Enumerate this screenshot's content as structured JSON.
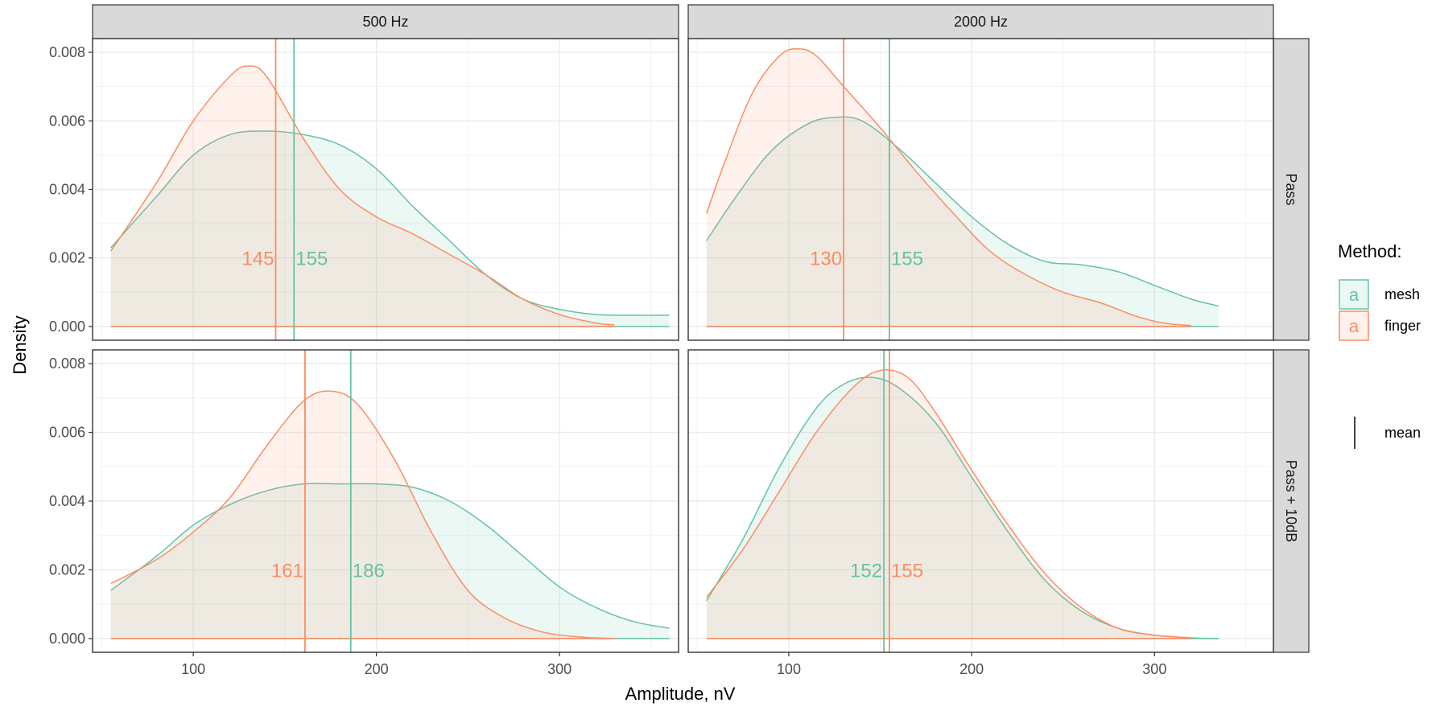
{
  "chart_data": {
    "type": "area",
    "x_label": "Amplitude, nV",
    "y_label": "Density",
    "x_range": [
      45,
      365
    ],
    "y_range": [
      -0.0004,
      0.0084
    ],
    "x_ticks": [
      100,
      200,
      300
    ],
    "x_tick_labels": [
      "100",
      "200",
      "300"
    ],
    "y_ticks": [
      0.0,
      0.002,
      0.004,
      0.006,
      0.008
    ],
    "y_tick_labels": [
      "0.000",
      "0.002",
      "0.004",
      "0.006",
      "0.008"
    ],
    "grid": true,
    "col_strips": [
      "500 Hz",
      "2000 Hz"
    ],
    "row_strips": [
      "Pass",
      "Pass + 10dB"
    ],
    "legend": {
      "title": "Method:",
      "position": "right",
      "key_glyph": "a",
      "items": [
        {
          "label": "mesh",
          "color": "#66c2a5"
        },
        {
          "label": "finger",
          "color": "#fc8d62"
        }
      ],
      "mean_label": "mean"
    },
    "series_colors": {
      "mesh": "#66c2a5",
      "finger": "#fc8d62"
    },
    "panels": [
      {
        "col": "500 Hz",
        "row": "Pass",
        "series": [
          {
            "name": "mesh",
            "x_min": 55,
            "x_max": 360,
            "x": [
              55,
              80,
              100,
              120,
              140,
              160,
              180,
              200,
              220,
              240,
              260,
              280,
              300,
              320,
              340,
              360
            ],
            "y": [
              0.0023,
              0.0038,
              0.005,
              0.0056,
              0.0057,
              0.0056,
              0.0053,
              0.0046,
              0.0035,
              0.0025,
              0.0015,
              0.0008,
              0.0005,
              0.00035,
              0.00033,
              0.00033
            ],
            "mean": 155,
            "mean_label": "155"
          },
          {
            "name": "finger",
            "x_min": 55,
            "x_max": 330,
            "x": [
              55,
              80,
              100,
              120,
              130,
              140,
              160,
              180,
              200,
              220,
              240,
              260,
              280,
              300,
              320,
              330
            ],
            "y": [
              0.0022,
              0.0042,
              0.006,
              0.0073,
              0.0076,
              0.0073,
              0.0055,
              0.004,
              0.0032,
              0.0027,
              0.0021,
              0.0015,
              0.0008,
              0.00035,
              0.0001,
              5e-05
            ],
            "mean": 145,
            "mean_label": "145"
          }
        ]
      },
      {
        "col": "2000 Hz",
        "row": "Pass",
        "series": [
          {
            "name": "mesh",
            "x_min": 55,
            "x_max": 335,
            "x": [
              55,
              70,
              90,
              110,
              125,
              140,
              160,
              180,
              200,
              220,
              240,
              260,
              280,
              300,
              320,
              335
            ],
            "y": [
              0.0025,
              0.0037,
              0.0051,
              0.0059,
              0.0061,
              0.006,
              0.0052,
              0.0042,
              0.0032,
              0.0024,
              0.0019,
              0.0018,
              0.0016,
              0.0012,
              0.0008,
              0.0006
            ],
            "mean": 155,
            "mean_label": "155"
          },
          {
            "name": "finger",
            "x_min": 55,
            "x_max": 320,
            "x": [
              55,
              65,
              80,
              95,
              105,
              115,
              130,
              150,
              170,
              190,
              210,
              230,
              250,
              270,
              290,
              305,
              320
            ],
            "y": [
              0.0033,
              0.0048,
              0.0068,
              0.0079,
              0.0081,
              0.0079,
              0.007,
              0.0058,
              0.0045,
              0.0033,
              0.0022,
              0.0015,
              0.001,
              0.0007,
              0.0003,
              0.0001,
              3e-05
            ],
            "mean": 130,
            "mean_label": "130"
          }
        ]
      },
      {
        "col": "500 Hz",
        "row": "Pass + 10dB",
        "series": [
          {
            "name": "mesh",
            "x_min": 55,
            "x_max": 360,
            "x": [
              55,
              80,
              100,
              120,
              140,
              160,
              180,
              200,
              220,
              240,
              260,
              280,
              300,
              320,
              340,
              360
            ],
            "y": [
              0.0014,
              0.0024,
              0.0033,
              0.0039,
              0.0043,
              0.0045,
              0.0045,
              0.0045,
              0.0044,
              0.004,
              0.0033,
              0.0024,
              0.0015,
              0.0009,
              0.0005,
              0.0003
            ],
            "mean": 186,
            "mean_label": "186"
          },
          {
            "name": "finger",
            "x_min": 55,
            "x_max": 330,
            "x": [
              55,
              80,
              100,
              120,
              140,
              160,
              175,
              190,
              210,
              230,
              250,
              270,
              290,
              310,
              330
            ],
            "y": [
              0.0016,
              0.0023,
              0.0031,
              0.0041,
              0.0056,
              0.0069,
              0.0072,
              0.0068,
              0.0052,
              0.0031,
              0.0014,
              0.0006,
              0.0002,
              5e-05,
              0.0
            ],
            "mean": 161,
            "mean_label": "161"
          }
        ]
      },
      {
        "col": "2000 Hz",
        "row": "Pass + 10dB",
        "series": [
          {
            "name": "mesh",
            "x_min": 55,
            "x_max": 335,
            "x": [
              55,
              75,
              95,
              115,
              130,
              145,
              160,
              180,
              200,
              220,
              240,
              260,
              280,
              300,
              320,
              335
            ],
            "y": [
              0.0011,
              0.0029,
              0.005,
              0.0067,
              0.0074,
              0.0076,
              0.0073,
              0.0063,
              0.0047,
              0.0031,
              0.0017,
              0.0008,
              0.0003,
              0.0001,
              2e-05,
              0.0
            ],
            "mean": 152,
            "mean_label": "152"
          },
          {
            "name": "finger",
            "x_min": 55,
            "x_max": 320,
            "x": [
              55,
              75,
              95,
              115,
              135,
              150,
              165,
              180,
              200,
              220,
              240,
              260,
              280,
              300,
              320
            ],
            "y": [
              0.0012,
              0.0026,
              0.0043,
              0.006,
              0.0073,
              0.0078,
              0.0076,
              0.0066,
              0.0049,
              0.0033,
              0.0019,
              0.0009,
              0.0003,
              0.0001,
              2e-05
            ],
            "mean": 155,
            "mean_label": "155"
          }
        ]
      }
    ]
  }
}
